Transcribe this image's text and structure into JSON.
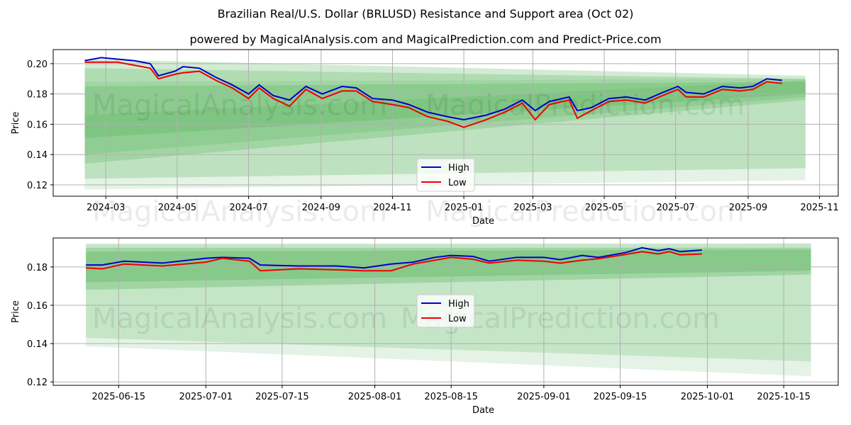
{
  "title": "Brazilian Real/U.S. Dollar (BRLUSD) Resistance and Support area (Oct 02)",
  "subtitle": "powered by MagicalAnalysis.com and MagicalPrediction.com and Predict-Price.com",
  "watermarks": [
    "MagicalAnalysis.com",
    "MagicalPrediction.com"
  ],
  "colors": {
    "high": "#0000cc",
    "low": "#ee0000",
    "band": "#4caf50"
  },
  "chart_data": [
    {
      "type": "line",
      "xlabel": "Date",
      "ylabel": "Price",
      "ylim": [
        0.1125,
        0.2093
      ],
      "xlim": [
        "2024-01-16",
        "2025-11-17"
      ],
      "yticks": [
        "0.12",
        "0.14",
        "0.16",
        "0.18",
        "0.20"
      ],
      "xticks": [
        "2024-03",
        "2024-05",
        "2024-07",
        "2024-09",
        "2024-11",
        "2025-01",
        "2025-03",
        "2025-05",
        "2025-07",
        "2025-09",
        "2025-11"
      ],
      "legend": {
        "placement": "lower-center",
        "entries": [
          "High",
          "Low"
        ]
      },
      "bands": [
        {
          "start": "2024-02-12",
          "end": "2025-10-20",
          "from": [
            0.117,
            0.188
          ],
          "to": [
            0.123,
            0.19
          ],
          "opacity": 0.15
        },
        {
          "start": "2024-02-12",
          "end": "2025-10-20",
          "from": [
            0.124,
            0.203
          ],
          "to": [
            0.131,
            0.192
          ],
          "opacity": 0.25
        },
        {
          "start": "2024-02-12",
          "end": "2025-10-20",
          "from": [
            0.134,
            0.197
          ],
          "to": [
            0.176,
            0.19
          ],
          "opacity": 0.25
        },
        {
          "start": "2024-02-12",
          "end": "2025-10-20",
          "from": [
            0.151,
            0.185
          ],
          "to": [
            0.18,
            0.188
          ],
          "opacity": 0.25
        },
        {
          "start": "2024-02-12",
          "end": "2025-10-20",
          "from": [
            0.14,
            0.166
          ],
          "to": [
            0.178,
            0.189
          ],
          "opacity": 0.2
        }
      ],
      "x": [
        "2024-02-12",
        "2024-02-26",
        "2024-03-11",
        "2024-03-25",
        "2024-04-08",
        "2024-04-15",
        "2024-04-29",
        "2024-05-06",
        "2024-05-20",
        "2024-06-03",
        "2024-06-17",
        "2024-07-01",
        "2024-07-10",
        "2024-07-22",
        "2024-08-05",
        "2024-08-19",
        "2024-09-02",
        "2024-09-19",
        "2024-10-01",
        "2024-10-15",
        "2024-11-01",
        "2024-11-15",
        "2024-12-01",
        "2024-12-18",
        "2025-01-01",
        "2025-01-20",
        "2025-02-05",
        "2025-02-20",
        "2025-03-03",
        "2025-03-15",
        "2025-04-01",
        "2025-04-08",
        "2025-04-20",
        "2025-05-05",
        "2025-05-20",
        "2025-06-05",
        "2025-06-20",
        "2025-07-03",
        "2025-07-10",
        "2025-07-25",
        "2025-08-10",
        "2025-08-25",
        "2025-09-05",
        "2025-09-17",
        "2025-09-30"
      ],
      "series": [
        {
          "name": "High",
          "values": [
            0.202,
            0.204,
            0.203,
            0.202,
            0.2,
            0.192,
            0.195,
            0.198,
            0.197,
            0.191,
            0.186,
            0.18,
            0.186,
            0.179,
            0.176,
            0.185,
            0.18,
            0.185,
            0.184,
            0.177,
            0.176,
            0.173,
            0.168,
            0.165,
            0.163,
            0.166,
            0.17,
            0.176,
            0.169,
            0.175,
            0.178,
            0.169,
            0.171,
            0.177,
            0.178,
            0.176,
            0.181,
            0.185,
            0.181,
            0.18,
            0.185,
            0.184,
            0.185,
            0.19,
            0.189
          ]
        },
        {
          "name": "Low",
          "values": [
            0.201,
            0.201,
            0.201,
            0.199,
            0.197,
            0.19,
            0.193,
            0.194,
            0.195,
            0.189,
            0.184,
            0.177,
            0.184,
            0.177,
            0.172,
            0.183,
            0.177,
            0.182,
            0.182,
            0.175,
            0.173,
            0.171,
            0.165,
            0.162,
            0.158,
            0.163,
            0.168,
            0.174,
            0.163,
            0.173,
            0.176,
            0.164,
            0.169,
            0.175,
            0.176,
            0.174,
            0.179,
            0.183,
            0.178,
            0.178,
            0.183,
            0.182,
            0.183,
            0.188,
            0.187
          ]
        }
      ]
    },
    {
      "type": "line",
      "xlabel": "Date",
      "ylabel": "Price",
      "ylim": [
        0.1182,
        0.1951
      ],
      "xlim": [
        "2025-06-03",
        "2025-10-25"
      ],
      "yticks": [
        "0.12",
        "0.14",
        "0.16",
        "0.18"
      ],
      "xticks": [
        "2025-06-15",
        "2025-07-01",
        "2025-07-15",
        "2025-08-01",
        "2025-08-15",
        "2025-09-01",
        "2025-09-15",
        "2025-10-01",
        "2025-10-15"
      ],
      "legend": {
        "placement": "center",
        "entries": [
          "High",
          "Low"
        ]
      },
      "bands": [
        {
          "start": "2025-06-09",
          "end": "2025-10-20",
          "from": [
            0.1386,
            0.192
          ],
          "to": [
            0.1229,
            0.1925
          ],
          "opacity": 0.15
        },
        {
          "start": "2025-06-09",
          "end": "2025-10-20",
          "from": [
            0.143,
            0.192
          ],
          "to": [
            0.1307,
            0.192
          ],
          "opacity": 0.2
        },
        {
          "start": "2025-06-09",
          "end": "2025-10-20",
          "from": [
            0.168,
            0.19
          ],
          "to": [
            0.176,
            0.19
          ],
          "opacity": 0.3
        },
        {
          "start": "2025-06-09",
          "end": "2025-10-20",
          "from": [
            0.172,
            0.188
          ],
          "to": [
            0.178,
            0.189
          ],
          "opacity": 0.3
        }
      ],
      "x": [
        "2025-06-09",
        "2025-06-12",
        "2025-06-16",
        "2025-06-23",
        "2025-07-01",
        "2025-07-04",
        "2025-07-09",
        "2025-07-11",
        "2025-07-18",
        "2025-07-25",
        "2025-07-30",
        "2025-08-04",
        "2025-08-08",
        "2025-08-12",
        "2025-08-15",
        "2025-08-19",
        "2025-08-22",
        "2025-08-27",
        "2025-09-01",
        "2025-09-04",
        "2025-09-08",
        "2025-09-11",
        "2025-09-16",
        "2025-09-19",
        "2025-09-22",
        "2025-09-24",
        "2025-09-26",
        "2025-09-30"
      ],
      "series": [
        {
          "name": "High",
          "values": [
            0.181,
            0.181,
            0.183,
            0.182,
            0.1845,
            0.185,
            0.1845,
            0.181,
            0.1805,
            0.1805,
            0.1795,
            0.1815,
            0.1825,
            0.185,
            0.186,
            0.1855,
            0.183,
            0.185,
            0.185,
            0.1838,
            0.186,
            0.185,
            0.1875,
            0.19,
            0.1885,
            0.1895,
            0.188,
            0.1888
          ]
        },
        {
          "name": "Low",
          "values": [
            0.1795,
            0.179,
            0.1815,
            0.1805,
            0.1825,
            0.1845,
            0.183,
            0.178,
            0.179,
            0.1785,
            0.178,
            0.178,
            0.1815,
            0.1835,
            0.185,
            0.184,
            0.182,
            0.1835,
            0.183,
            0.182,
            0.1835,
            0.1843,
            0.1865,
            0.188,
            0.1868,
            0.188,
            0.1863,
            0.1868
          ]
        }
      ]
    }
  ]
}
